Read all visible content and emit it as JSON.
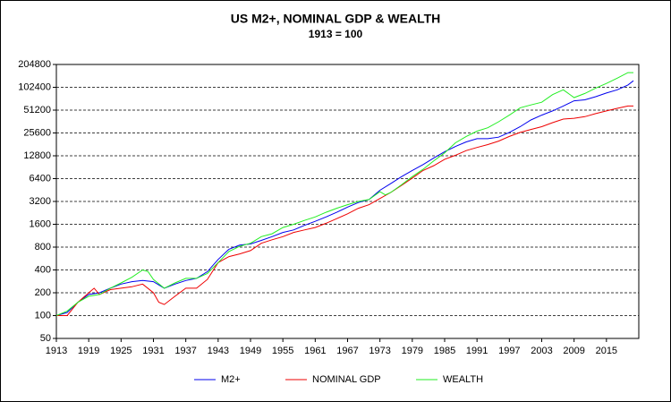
{
  "chart_data": {
    "type": "line",
    "title": "US M2+, NOMINAL GDP & WEALTH",
    "subtitle": "1913 = 100",
    "log_scale_y": true,
    "grid": true,
    "legend": "bottom",
    "xlim": [
      1913,
      2021
    ],
    "xticks": [
      1913,
      1919,
      1925,
      1931,
      1937,
      1943,
      1949,
      1955,
      1961,
      1967,
      1973,
      1979,
      1985,
      1991,
      1997,
      2003,
      2009,
      2015
    ],
    "ylim": [
      50,
      204800
    ],
    "yticks": [
      50,
      100,
      200,
      400,
      800,
      1600,
      3200,
      6400,
      12800,
      25600,
      51200,
      102400,
      204800
    ],
    "series": [
      {
        "name": "M2+",
        "color": "#0000ee",
        "x": [
          1913,
          1915,
          1917,
          1919,
          1921,
          1923,
          1925,
          1927,
          1929,
          1931,
          1933,
          1935,
          1937,
          1939,
          1941,
          1943,
          1945,
          1947,
          1949,
          1951,
          1953,
          1955,
          1957,
          1959,
          1961,
          1963,
          1965,
          1967,
          1969,
          1971,
          1973,
          1975,
          1977,
          1979,
          1981,
          1983,
          1985,
          1987,
          1989,
          1991,
          1993,
          1995,
          1997,
          1999,
          2001,
          2003,
          2005,
          2007,
          2009,
          2011,
          2013,
          2015,
          2017,
          2019,
          2020
        ],
        "values": [
          100,
          110,
          150,
          190,
          200,
          230,
          260,
          280,
          290,
          280,
          230,
          260,
          290,
          310,
          380,
          550,
          750,
          850,
          880,
          980,
          1100,
          1250,
          1350,
          1550,
          1750,
          2000,
          2300,
          2700,
          3100,
          3400,
          4500,
          5500,
          6800,
          8200,
          9800,
          12000,
          14500,
          17000,
          19500,
          21500,
          21500,
          22500,
          26000,
          31000,
          38000,
          44000,
          50000,
          58000,
          68000,
          70000,
          77000,
          86000,
          95000,
          110000,
          125000
        ]
      },
      {
        "name": "NOMINAL GDP",
        "color": "#ee0000",
        "x": [
          1913,
          1915,
          1917,
          1919,
          1920,
          1921,
          1923,
          1925,
          1927,
          1929,
          1931,
          1932,
          1933,
          1935,
          1937,
          1939,
          1941,
          1943,
          1945,
          1947,
          1949,
          1951,
          1953,
          1955,
          1957,
          1959,
          1961,
          1963,
          1965,
          1967,
          1969,
          1971,
          1973,
          1975,
          1977,
          1979,
          1981,
          1983,
          1985,
          1987,
          1989,
          1991,
          1993,
          1995,
          1997,
          1999,
          2001,
          2003,
          2005,
          2007,
          2009,
          2011,
          2013,
          2015,
          2017,
          2019,
          2020
        ],
        "values": [
          100,
          100,
          150,
          200,
          230,
          190,
          220,
          230,
          240,
          260,
          200,
          150,
          140,
          180,
          230,
          230,
          300,
          500,
          600,
          650,
          720,
          900,
          1000,
          1100,
          1250,
          1350,
          1450,
          1650,
          1900,
          2200,
          2600,
          2900,
          3500,
          4200,
          5200,
          6500,
          8200,
          9500,
          11500,
          13000,
          15000,
          16500,
          18000,
          20000,
          23000,
          26000,
          28500,
          31000,
          35000,
          39000,
          40000,
          42000,
          46000,
          50000,
          54000,
          58000,
          58000
        ]
      },
      {
        "name": "WEALTH",
        "color": "#22ee22",
        "x": [
          1913,
          1915,
          1917,
          1919,
          1921,
          1923,
          1925,
          1927,
          1929,
          1930,
          1931,
          1933,
          1935,
          1937,
          1939,
          1941,
          1943,
          1945,
          1947,
          1949,
          1951,
          1953,
          1955,
          1957,
          1959,
          1961,
          1963,
          1965,
          1967,
          1969,
          1971,
          1973,
          1974,
          1975,
          1977,
          1979,
          1981,
          1983,
          1985,
          1987,
          1989,
          1991,
          1993,
          1995,
          1997,
          1999,
          2001,
          2003,
          2005,
          2007,
          2009,
          2011,
          2013,
          2015,
          2017,
          2019,
          2020
        ],
        "values": [
          100,
          115,
          150,
          180,
          190,
          230,
          270,
          320,
          400,
          380,
          300,
          230,
          270,
          310,
          310,
          360,
          500,
          700,
          820,
          900,
          1100,
          1200,
          1450,
          1600,
          1800,
          2000,
          2300,
          2600,
          2900,
          3200,
          3400,
          4300,
          3900,
          4200,
          5300,
          6800,
          8500,
          11000,
          14000,
          19000,
          23000,
          27000,
          30000,
          36000,
          44000,
          55000,
          60000,
          65000,
          82000,
          95000,
          75000,
          85000,
          100000,
          115000,
          135000,
          160000,
          160000
        ]
      }
    ]
  }
}
